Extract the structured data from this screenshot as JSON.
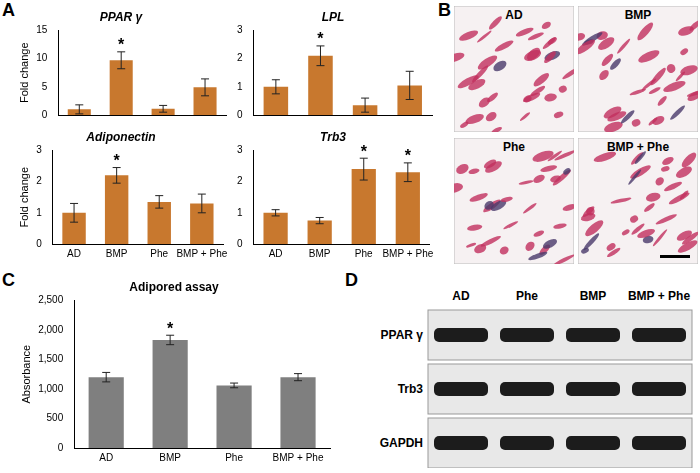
{
  "panel_labels": [
    "A",
    "B",
    "C",
    "D"
  ],
  "micrographs": {
    "labels": [
      "AD",
      "BMP",
      "Phe",
      "BMP + Phe"
    ]
  },
  "western_blot": {
    "lanes": [
      "AD",
      "Phe",
      "BMP",
      "BMP + Phe"
    ],
    "proteins": [
      "PPAR γ",
      "Trb3",
      "GAPDH"
    ]
  },
  "chart_data": [
    {
      "type": "bar",
      "title": "PPAR γ",
      "ylabel": "Fold change",
      "categories": [
        "AD",
        "BMP",
        "Phe",
        "BMP + Phe"
      ],
      "values": [
        1.0,
        9.7,
        1.1,
        4.9
      ],
      "errors": [
        0.8,
        1.5,
        0.6,
        1.5
      ],
      "color": "#c8782e",
      "ylim": [
        0,
        15
      ],
      "yticks": [
        0,
        5,
        10,
        15
      ],
      "grid": false,
      "tick_labels": "y",
      "annotations": [
        {
          "category": "BMP",
          "text": "*"
        }
      ]
    },
    {
      "type": "bar",
      "title": "LPL",
      "categories": [
        "AD",
        "BMP",
        "Phe",
        "BMP + Phe"
      ],
      "values": [
        1.0,
        2.1,
        0.35,
        1.05
      ],
      "errors": [
        0.25,
        0.35,
        0.25,
        0.5
      ],
      "color": "#c8782e",
      "ylim": [
        0,
        3
      ],
      "yticks": [
        0,
        1,
        2,
        3
      ],
      "grid": false,
      "tick_labels": "y",
      "annotations": [
        {
          "category": "BMP",
          "text": "*"
        }
      ]
    },
    {
      "type": "bar",
      "title": "Adiponectin",
      "ylabel": "Fold change",
      "categories": [
        "AD",
        "BMP",
        "Phe",
        "BMP + Phe"
      ],
      "values": [
        1.0,
        2.2,
        1.35,
        1.3
      ],
      "errors": [
        0.3,
        0.25,
        0.2,
        0.3
      ],
      "color": "#c8782e",
      "ylim": [
        0,
        3
      ],
      "yticks": [
        0,
        1,
        2,
        3
      ],
      "grid": false,
      "annotations": [
        {
          "category": "BMP",
          "text": "*"
        }
      ]
    },
    {
      "type": "bar",
      "title": "Trb3",
      "categories": [
        "AD",
        "BMP",
        "Phe",
        "BMP + Phe"
      ],
      "values": [
        1.0,
        0.75,
        2.4,
        2.3
      ],
      "errors": [
        0.1,
        0.1,
        0.35,
        0.3
      ],
      "color": "#c8782e",
      "ylim": [
        0,
        3
      ],
      "yticks": [
        0,
        1,
        2,
        3
      ],
      "grid": false,
      "annotations": [
        {
          "category": "Phe",
          "text": "*"
        },
        {
          "category": "BMP + Phe",
          "text": "*"
        }
      ]
    },
    {
      "type": "bar",
      "title": "Adipored assay",
      "ylabel": "Absorbance",
      "categories": [
        "AD",
        "BMP",
        "Phe",
        "BMP + Phe"
      ],
      "values": [
        1200,
        1830,
        1060,
        1200
      ],
      "errors": [
        80,
        80,
        40,
        60
      ],
      "color": "#7f7f7f",
      "ylim": [
        0,
        2500
      ],
      "yticks": [
        0,
        500,
        1000,
        1500,
        2000,
        2500
      ],
      "grid": false,
      "annotations": [
        {
          "category": "BMP",
          "text": "*"
        }
      ]
    }
  ]
}
